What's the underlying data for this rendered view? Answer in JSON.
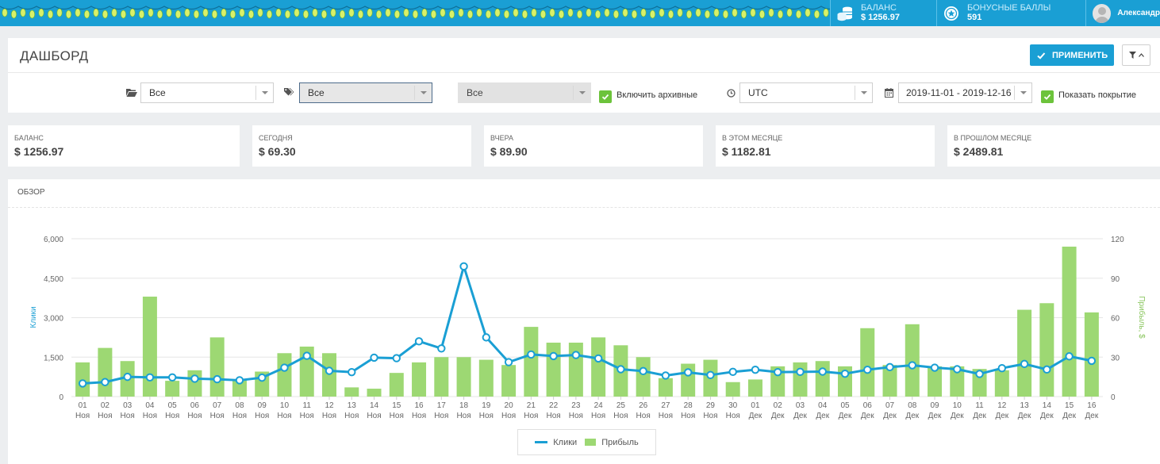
{
  "topbar": {
    "balance_label": "БАЛАНС",
    "balance_value": "$ 1256.97",
    "bonus_label": "БОНУСНЫЕ БАЛЛЫ",
    "bonus_value": "591",
    "user_name": "Александр",
    "accent": "#1a9fd4"
  },
  "header": {
    "title": "ДАШБОРД",
    "apply_label": "ПРИМЕНИТЬ"
  },
  "filters": {
    "folder_select": "Все",
    "tag_select": "Все",
    "third_select": "Все",
    "include_archived_label": "Включить архивные",
    "timezone": "UTC",
    "date_range": "2019-11-01 - 2019-12-16",
    "show_coverage_label": "Показать покрытие"
  },
  "stats": [
    {
      "label": "БАЛАНС",
      "value": "$ 1256.97"
    },
    {
      "label": "СЕГОДНЯ",
      "value": "$ 69.30"
    },
    {
      "label": "ВЧЕРА",
      "value": "$ 89.90"
    },
    {
      "label": "В ЭТОМ МЕСЯЦЕ",
      "value": "$ 1182.81"
    },
    {
      "label": "В ПРОШЛОМ МЕСЯЦЕ",
      "value": "$ 2489.81"
    }
  ],
  "overview": {
    "title": "ОБЗОР"
  },
  "chart_data": {
    "type": "bar",
    "categories": [
      "01",
      "02",
      "03",
      "04",
      "05",
      "06",
      "07",
      "08",
      "09",
      "10",
      "11",
      "12",
      "13",
      "14",
      "15",
      "16",
      "17",
      "18",
      "19",
      "20",
      "21",
      "22",
      "23",
      "24",
      "25",
      "26",
      "27",
      "28",
      "29",
      "30",
      "01",
      "02",
      "03",
      "04",
      "05",
      "06",
      "07",
      "08",
      "09",
      "10",
      "11",
      "12",
      "13",
      "14",
      "15",
      "16"
    ],
    "months": [
      "Ноя",
      "Ноя",
      "Ноя",
      "Ноя",
      "Ноя",
      "Ноя",
      "Ноя",
      "Ноя",
      "Ноя",
      "Ноя",
      "Ноя",
      "Ноя",
      "Ноя",
      "Ноя",
      "Ноя",
      "Ноя",
      "Ноя",
      "Ноя",
      "Ноя",
      "Ноя",
      "Ноя",
      "Ноя",
      "Ноя",
      "Ноя",
      "Ноя",
      "Ноя",
      "Ноя",
      "Ноя",
      "Ноя",
      "Ноя",
      "Дек",
      "Дек",
      "Дек",
      "Дек",
      "Дек",
      "Дек",
      "Дек",
      "Дек",
      "Дек",
      "Дек",
      "Дек",
      "Дек",
      "Дек",
      "Дек",
      "Дек",
      "Дек"
    ],
    "series": [
      {
        "name": "Клики",
        "type": "line",
        "axis": "left",
        "color": "#1a9fd4",
        "values": [
          500,
          550,
          750,
          730,
          730,
          680,
          660,
          620,
          720,
          1100,
          1550,
          980,
          930,
          1480,
          1460,
          2100,
          1830,
          4950,
          2250,
          1310,
          1600,
          1540,
          1580,
          1450,
          1040,
          970,
          800,
          920,
          820,
          940,
          1020,
          930,
          940,
          950,
          870,
          1020,
          1120,
          1190,
          1100,
          1040,
          860,
          1080,
          1240,
          1030,
          1530,
          1360
        ]
      },
      {
        "name": "Прибыль",
        "type": "bar",
        "axis": "right",
        "color": "#9dd873",
        "values": [
          26,
          37,
          27,
          76,
          12,
          20,
          45,
          13,
          19,
          33,
          38,
          33,
          7,
          6,
          18,
          26,
          30,
          30,
          28,
          24,
          53,
          41,
          41,
          45,
          39,
          30,
          14,
          25,
          28,
          11,
          13,
          23,
          26,
          27,
          23,
          52,
          24,
          55,
          23,
          23,
          21,
          20,
          66,
          71,
          114,
          64
        ]
      }
    ],
    "ylabel_left": "Клики",
    "ylabel_right": "Прибыль, $",
    "ylim_left": [
      0,
      6000
    ],
    "ylim_right": [
      0,
      120
    ],
    "yticks_left": [
      "0",
      "1,500",
      "3,000",
      "4,500",
      "6,000"
    ],
    "yticks_right": [
      "0",
      "30",
      "60",
      "90",
      "120"
    ],
    "legend": [
      "Клики",
      "Прибыль"
    ],
    "grid": true
  }
}
